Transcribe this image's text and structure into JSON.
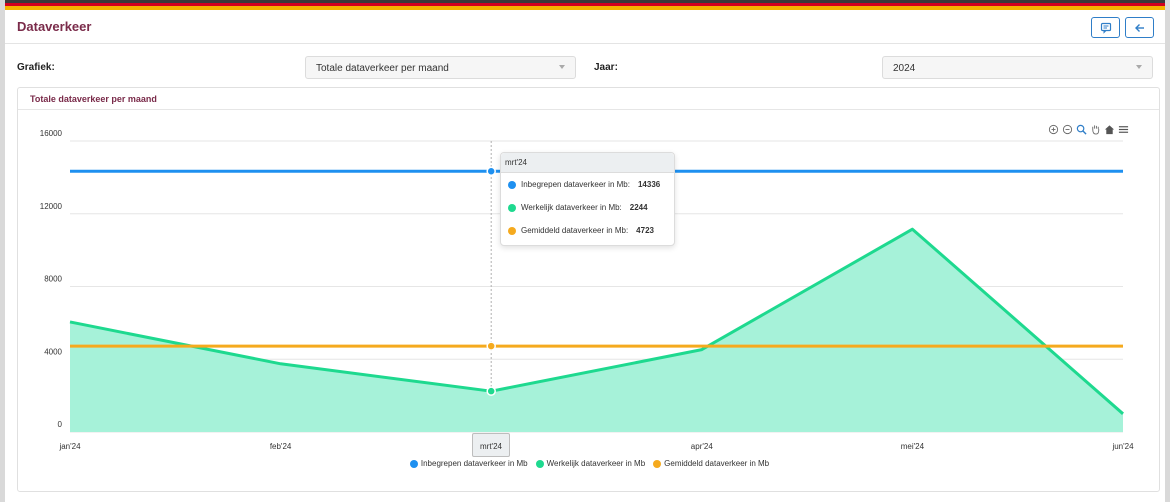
{
  "page": {
    "title": "Dataverkeer"
  },
  "header": {
    "chat_icon": "chat-bubble-icon",
    "back_icon": "arrow-left-icon"
  },
  "filters": {
    "grafiek_label": "Grafiek:",
    "grafiek_value": "Totale dataverkeer per maand",
    "jaar_label": "Jaar:",
    "jaar_value": "2024"
  },
  "card": {
    "title": "Totale dataverkeer per maand"
  },
  "toolbar": [
    "zoom-in-icon",
    "zoom-out-icon",
    "zoom-search-icon",
    "pan-hand-icon",
    "home-icon",
    "menu-icon"
  ],
  "colors": {
    "blue": "#1e90f0",
    "green": "#1ed98f",
    "green_fill": "#a6f2d9",
    "orange": "#f5aa1e",
    "accent": "#7a2b4a"
  },
  "tooltip": {
    "title": "mrt'24",
    "rows": [
      {
        "label": "Inbegrepen dataverkeer in Mb:",
        "value": "14336"
      },
      {
        "label": "Werkelijk dataverkeer in Mb:",
        "value": "2244"
      },
      {
        "label": "Gemiddeld dataverkeer in Mb:",
        "value": "4723"
      }
    ],
    "x_label": "mrt'24"
  },
  "chart_data": {
    "type": "line",
    "categories": [
      "jan'24",
      "feb'24",
      "mrt'24",
      "apr'24",
      "mei'24",
      "jun'24"
    ],
    "y_ticks": [
      "0",
      "4000",
      "8000",
      "12000",
      "16000"
    ],
    "ylim": [
      0,
      16000
    ],
    "grid": true,
    "legend_position": "bottom",
    "series": [
      {
        "name": "Inbegrepen dataverkeer in Mb",
        "values": [
          14336,
          14336,
          14336,
          14336,
          14336,
          14336
        ],
        "color": "#1e90f0",
        "fill": false
      },
      {
        "name": "Werkelijk dataverkeer in Mb",
        "values": [
          6050,
          3750,
          2244,
          4530,
          11150,
          1000
        ],
        "color": "#1ed98f",
        "fill": true
      },
      {
        "name": "Gemiddeld dataverkeer in Mb",
        "values": [
          4723,
          4723,
          4723,
          4723,
          4723,
          4723
        ],
        "color": "#f5aa1e",
        "fill": false
      }
    ],
    "hover_index": 2
  }
}
